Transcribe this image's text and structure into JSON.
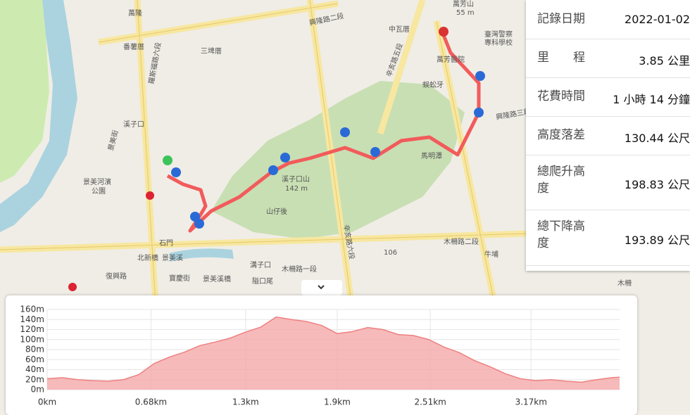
{
  "stats": [
    {
      "label": "記錄日期",
      "value": "2022-01-02"
    },
    {
      "label": "里　　程",
      "value": "3.85 公里"
    },
    {
      "label": "花費時間",
      "value": "1 小時 14 分鐘"
    },
    {
      "label": "高度落差",
      "value": "130.44 公尺"
    },
    {
      "label": "總爬升高度",
      "value": "198.83 公尺"
    },
    {
      "label": "總下降高度",
      "value": "193.89 公尺"
    }
  ],
  "map": {
    "labels": [
      "萬隆",
      "番薯厝",
      "三埤厝",
      "興隆路二段",
      "中瓦厝",
      "萬芳山",
      "55 m",
      "臺灣警察",
      "專科學校",
      "萬芳醫院",
      "蜈蚣牙",
      "溪子口",
      "景美河濱",
      "公園",
      "溪子口山",
      "142 m",
      "山仔後",
      "石門",
      "北新橋",
      "景美溪",
      "106",
      "木柵路二段",
      "牛埔",
      "溝子口",
      "木柵路一段",
      "復興路",
      "寶慶街",
      "景美溪橋",
      "隘口尾",
      "木柵",
      "興隆路三段",
      "馬明潭",
      "羅斯福路六段",
      "辛亥路五段",
      "辛亥路六段",
      "景美街"
    ]
  },
  "chart_data": {
    "type": "area",
    "color": "#f4a3a3",
    "line_color": "#ee8080",
    "x": [
      0,
      0.1,
      0.2,
      0.3,
      0.4,
      0.5,
      0.6,
      0.7,
      0.8,
      0.9,
      1.0,
      1.1,
      1.2,
      1.3,
      1.4,
      1.5,
      1.6,
      1.7,
      1.8,
      1.9,
      2.0,
      2.1,
      2.2,
      2.3,
      2.4,
      2.5,
      2.6,
      2.7,
      2.8,
      2.9,
      3.0,
      3.1,
      3.2,
      3.3,
      3.4,
      3.5,
      3.6,
      3.7,
      3.75
    ],
    "values": [
      22,
      24,
      20,
      18,
      17,
      20,
      30,
      52,
      65,
      75,
      88,
      95,
      103,
      115,
      125,
      145,
      140,
      136,
      128,
      112,
      116,
      124,
      120,
      110,
      108,
      100,
      85,
      74,
      58,
      46,
      32,
      22,
      18,
      20,
      17,
      15,
      20,
      24,
      25
    ],
    "xlim": [
      0,
      3.75
    ],
    "xticks": [
      {
        "value": 0,
        "label": "0km"
      },
      {
        "value": 0.68,
        "label": "0.68km"
      },
      {
        "value": 1.3,
        "label": "1.3km"
      },
      {
        "value": 1.9,
        "label": "1.9km"
      },
      {
        "value": 2.51,
        "label": "2.51km"
      },
      {
        "value": 3.17,
        "label": "3.17km"
      }
    ],
    "ylim": [
      0,
      160
    ],
    "yticks": [
      {
        "value": 0,
        "label": "0m"
      },
      {
        "value": 20,
        "label": "20m"
      },
      {
        "value": 40,
        "label": "40m"
      },
      {
        "value": 60,
        "label": "60m"
      },
      {
        "value": 80,
        "label": "80m"
      },
      {
        "value": 100,
        "label": "100m"
      },
      {
        "value": 120,
        "label": "120m"
      },
      {
        "value": 140,
        "label": "140m"
      },
      {
        "value": 160,
        "label": "160m"
      }
    ],
    "grid": true
  }
}
